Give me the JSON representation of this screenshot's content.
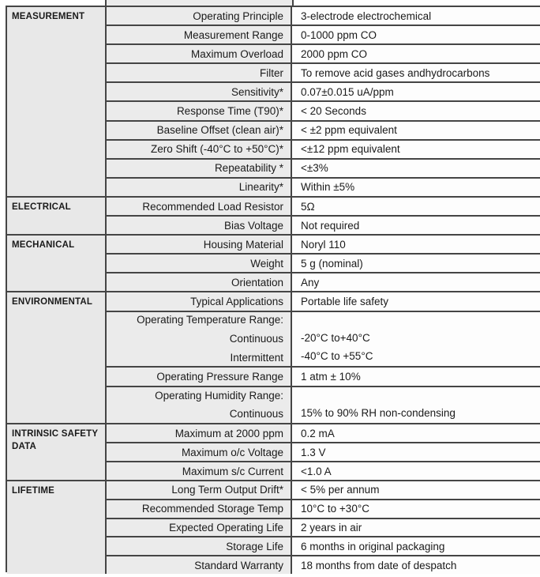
{
  "document": {
    "type": "sensor-specification-datasheet",
    "colors": {
      "category_bg": "#e8e8e8",
      "label_bg": "#ebebeb",
      "value_bg": "#fdfdfd",
      "border": "#454545",
      "text": "#1a1a1a",
      "page_bg": "#ffffff"
    }
  },
  "table": {
    "sections": [
      {
        "category": "MEASUREMENT",
        "rows": [
          {
            "label": "Operating Principle",
            "value": "3-electrode electrochemical"
          },
          {
            "label": "Measurement Range",
            "value": "0-1000 ppm CO"
          },
          {
            "label": "Maximum Overload",
            "value": "2000 ppm CO"
          },
          {
            "label": "Filter",
            "value": "To remove acid gases andhydrocarbons"
          },
          {
            "label": "Sensitivity*",
            "value": "0.07±0.015 uA/ppm"
          },
          {
            "label": "Response Time (T90)*",
            "value": "< 20 Seconds"
          },
          {
            "label": "Baseline Offset (clean air)*",
            "value": "< ±2 ppm equivalent"
          },
          {
            "label": "Zero Shift (-40°C to +50°C)*",
            "value": "<±12 ppm equivalent"
          },
          {
            "label": "Repeatability *",
            "value": "<±3%"
          },
          {
            "label": "Linearity*",
            "value": "Within ±5%"
          }
        ]
      },
      {
        "category": "ELECTRICAL",
        "rows": [
          {
            "label": "Recommended Load Resistor",
            "value": "5Ω"
          },
          {
            "label": "Bias Voltage",
            "value": "Not required"
          }
        ]
      },
      {
        "category": "MECHANICAL",
        "rows": [
          {
            "label": "Housing Material",
            "value": "Noryl 110"
          },
          {
            "label": "Weight",
            "value": "5 g (nominal)"
          },
          {
            "label": "Orientation",
            "value": "Any"
          }
        ]
      },
      {
        "category": "ENVIRONMENTAL",
        "rows": [
          {
            "label": "Typical Applications",
            "value": "Portable life safety"
          },
          {
            "lines": 3,
            "label_lines": [
              "Operating Temperature Range:",
              "Continuous",
              "Intermittent"
            ],
            "value_lines": [
              "",
              "-20°C to+40°C",
              "-40°C to +55°C"
            ]
          },
          {
            "label": "Operating Pressure Range",
            "value": "1 atm ± 10%"
          },
          {
            "lines": 2,
            "label_lines": [
              "Operating Humidity Range:",
              "Continuous"
            ],
            "value_lines": [
              "",
              "15% to 90% RH non-condensing"
            ]
          }
        ]
      },
      {
        "category": "INTRINSIC SAFETY DATA",
        "rows": [
          {
            "label": "Maximum at 2000 ppm",
            "value": "0.2 mA"
          },
          {
            "label": "Maximum o/c Voltage",
            "value": "1.3 V"
          },
          {
            "label": "Maximum s/c Current",
            "value": "<1.0 A"
          }
        ]
      },
      {
        "category": "LIFETIME",
        "rows": [
          {
            "label": "Long Term Output Drift*",
            "value": "< 5% per annum"
          },
          {
            "label": "Recommended Storage Temp",
            "value": "10°C to +30°C"
          },
          {
            "label": "Expected Operating Life",
            "value": "2 years in air"
          },
          {
            "label": "Storage Life",
            "value": "6 months in original packaging"
          },
          {
            "label": "Standard Warranty",
            "value": "18 months from date of despatch"
          }
        ]
      }
    ]
  }
}
